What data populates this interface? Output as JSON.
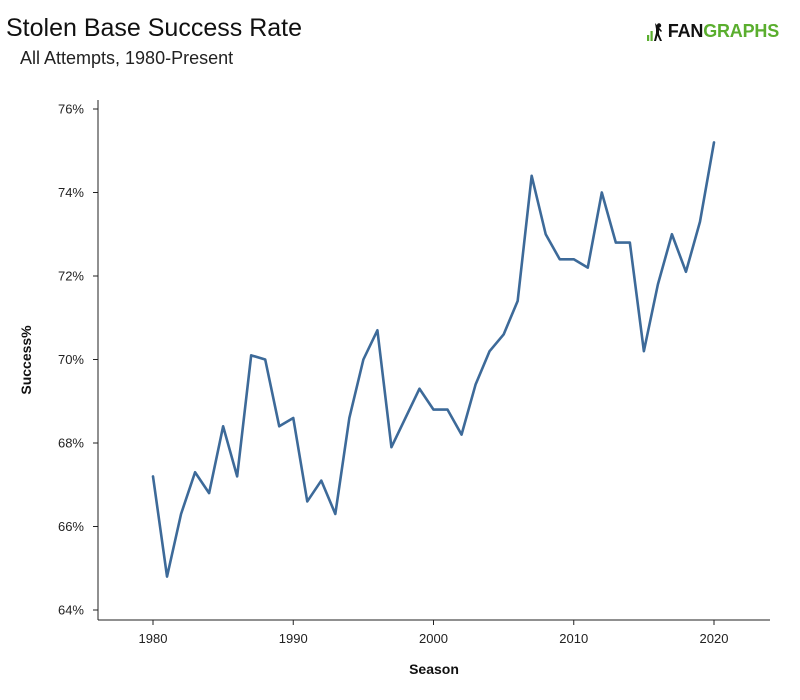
{
  "header": {
    "title": "Stolen Base Success Rate",
    "subtitle": "All Attempts, 1980-Present"
  },
  "brand": {
    "logo_prefix": "FAN",
    "logo_suffix": "GRAPHS",
    "colors": {
      "dark": "#111111",
      "green": "#5aae2e"
    }
  },
  "chart_data": {
    "type": "line",
    "xlabel": "Season",
    "ylabel": "Success%",
    "xlim": [
      1976,
      2024
    ],
    "ylim": [
      64,
      76
    ],
    "x_ticks": [
      1980,
      1990,
      2000,
      2010,
      2020
    ],
    "y_ticks": [
      64,
      66,
      68,
      70,
      72,
      74,
      76
    ],
    "x_tick_labels": [
      "1980",
      "1990",
      "2000",
      "2010",
      "2020"
    ],
    "y_tick_labels": [
      "64%",
      "66%",
      "68%",
      "70%",
      "72%",
      "74%",
      "76%"
    ],
    "grid": false,
    "line_color": "#3d6a99",
    "series": [
      {
        "x": [
          1980,
          1981,
          1982,
          1983,
          1984,
          1985,
          1986,
          1987,
          1988,
          1989,
          1990,
          1991,
          1992,
          1993,
          1994,
          1995,
          1996,
          1997,
          1998,
          1999,
          2000,
          2001,
          2002,
          2003,
          2004,
          2005,
          2006,
          2007,
          2008,
          2009,
          2010,
          2011,
          2012,
          2013,
          2014,
          2015,
          2016,
          2017,
          2018,
          2019,
          2020
        ],
        "y": [
          67.2,
          64.8,
          66.3,
          67.3,
          66.8,
          68.4,
          67.2,
          70.1,
          70.0,
          68.4,
          68.6,
          66.6,
          67.1,
          66.3,
          68.6,
          70.0,
          70.7,
          67.9,
          68.6,
          69.3,
          68.8,
          68.8,
          68.2,
          69.4,
          70.2,
          70.6,
          71.4,
          74.4,
          73.0,
          72.4,
          72.4,
          72.2,
          74.0,
          72.8,
          72.8,
          70.2,
          71.8,
          73.0,
          72.1,
          73.3,
          75.2
        ]
      }
    ]
  }
}
